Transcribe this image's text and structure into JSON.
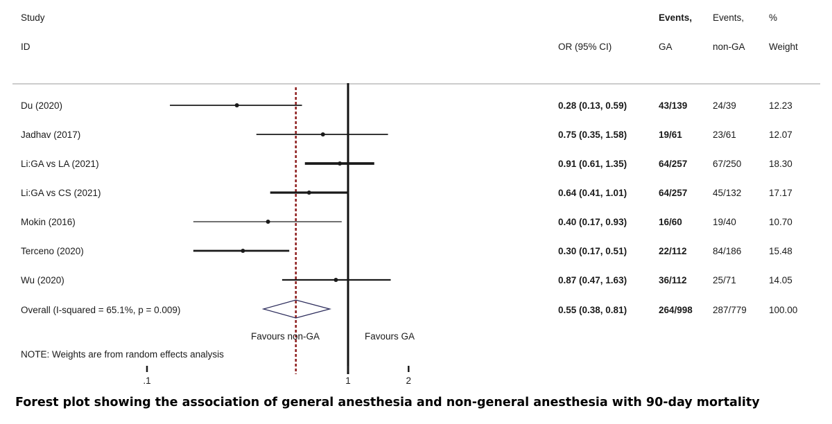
{
  "chart_data": {
    "type": "forest",
    "title": "",
    "x_scale": "log",
    "xlim": [
      0.1,
      2
    ],
    "x_ticks": [
      0.1,
      1,
      2
    ],
    "x_tick_labels": [
      ".1",
      "1",
      "2"
    ],
    "reference_line": 1,
    "overall_line": 0.55,
    "headers": {
      "study_top": "Study",
      "study_bottom": "ID",
      "or": "OR (95% CI)",
      "events_ga_top": "Events,",
      "events_ga_bottom": "GA",
      "events_nonga_top": "Events,",
      "events_nonga_bottom": "non-GA",
      "weight_top": "%",
      "weight_bottom": "Weight"
    },
    "studies": [
      {
        "name": "Du (2020)",
        "or": 0.28,
        "lo": 0.13,
        "hi": 0.59,
        "or_text": "0.28 (0.13, 0.59)",
        "events_ga": "43/139",
        "events_nonga": "24/39",
        "weight": 12.23,
        "weight_text": "12.23"
      },
      {
        "name": "Jadhav (2017)",
        "or": 0.75,
        "lo": 0.35,
        "hi": 1.58,
        "or_text": "0.75 (0.35, 1.58)",
        "events_ga": "19/61",
        "events_nonga": "23/61",
        "weight": 12.07,
        "weight_text": "12.07"
      },
      {
        "name": "Li:GA vs LA (2021)",
        "or": 0.91,
        "lo": 0.61,
        "hi": 1.35,
        "or_text": "0.91 (0.61, 1.35)",
        "events_ga": "64/257",
        "events_nonga": "67/250",
        "weight": 18.3,
        "weight_text": "18.30"
      },
      {
        "name": "Li:GA vs CS (2021)",
        "or": 0.64,
        "lo": 0.41,
        "hi": 1.01,
        "or_text": "0.64 (0.41, 1.01)",
        "events_ga": "64/257",
        "events_nonga": "45/132",
        "weight": 17.17,
        "weight_text": "17.17"
      },
      {
        "name": "Mokin (2016)",
        "or": 0.4,
        "lo": 0.17,
        "hi": 0.93,
        "or_text": "0.40 (0.17, 0.93)",
        "events_ga": "16/60",
        "events_nonga": "19/40",
        "weight": 10.7,
        "weight_text": "10.70"
      },
      {
        "name": "Terceno (2020)",
        "or": 0.3,
        "lo": 0.17,
        "hi": 0.51,
        "or_text": "0.30 (0.17, 0.51)",
        "events_ga": "22/112",
        "events_nonga": "84/186",
        "weight": 15.48,
        "weight_text": "15.48"
      },
      {
        "name": "Wu (2020)",
        "or": 0.87,
        "lo": 0.47,
        "hi": 1.63,
        "or_text": "0.87 (0.47, 1.63)",
        "events_ga": "36/112",
        "events_nonga": "25/71",
        "weight": 14.05,
        "weight_text": "14.05"
      }
    ],
    "overall": {
      "name": "Overall  (I-squared = 65.1%, p = 0.009)",
      "or": 0.55,
      "lo": 0.38,
      "hi": 0.81,
      "or_text": "0.55 (0.38, 0.81)",
      "events_ga": "264/998",
      "events_nonga": "287/779",
      "weight_text": "100.00"
    },
    "favours_left": "Favours non-GA",
    "favours_right": "Favours GA",
    "note": "NOTE: Weights are from random effects analysis"
  },
  "caption": "Forest plot showing the association of general anesthesia and non-general anesthesia with 90-day mortality",
  "colors": {
    "text": "#1a1a1a",
    "ref_line": "#111111",
    "overall_line": "#8b1a1a",
    "rule": "#9a9a9a"
  }
}
